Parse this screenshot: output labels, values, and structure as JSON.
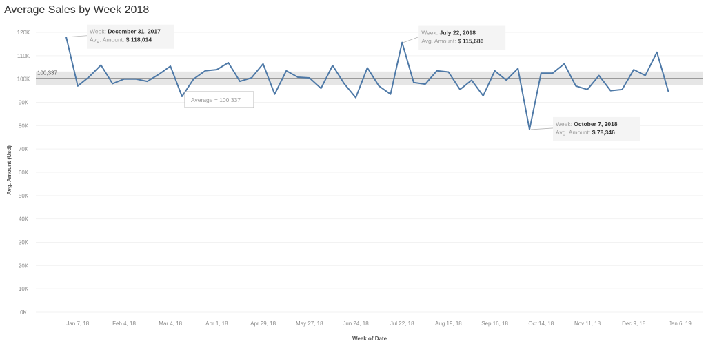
{
  "chart_data": {
    "type": "line",
    "title": "Average Sales by Week 2018",
    "xlabel": "Week of Date",
    "ylabel": "Avg. Amount (Usd)",
    "ylim": [
      0,
      120000
    ],
    "y_ticks": [
      0,
      10000,
      20000,
      30000,
      40000,
      50000,
      60000,
      70000,
      80000,
      90000,
      100000,
      110000,
      120000
    ],
    "y_tick_labels": [
      "0K",
      "10K",
      "20K",
      "30K",
      "40K",
      "50K",
      "60K",
      "70K",
      "80K",
      "90K",
      "100K",
      "110K",
      "120K"
    ],
    "x_tick_labels": [
      "Jan 7, 18",
      "Feb 4, 18",
      "Mar 4, 18",
      "Apr 1, 18",
      "Apr 29, 18",
      "May 27, 18",
      "Jun 24, 18",
      "Jul 22, 18",
      "Aug 19, 18",
      "Sep 16, 18",
      "Oct 14, 18",
      "Nov 11, 18",
      "Dec 9, 18",
      "Jan 6, 19"
    ],
    "x_tick_dates": [
      "2018-01-07",
      "2018-02-04",
      "2018-03-04",
      "2018-04-01",
      "2018-04-29",
      "2018-05-27",
      "2018-06-24",
      "2018-07-22",
      "2018-08-19",
      "2018-09-16",
      "2018-10-14",
      "2018-11-11",
      "2018-12-09",
      "2019-01-06"
    ],
    "grid": true,
    "series": [
      {
        "color": "#4e79a7",
        "x": [
          "2017-12-31",
          "2018-01-07",
          "2018-01-14",
          "2018-01-21",
          "2018-01-28",
          "2018-02-04",
          "2018-02-11",
          "2018-02-18",
          "2018-02-25",
          "2018-03-04",
          "2018-03-11",
          "2018-03-18",
          "2018-03-25",
          "2018-04-01",
          "2018-04-08",
          "2018-04-15",
          "2018-04-22",
          "2018-04-29",
          "2018-05-06",
          "2018-05-13",
          "2018-05-20",
          "2018-05-27",
          "2018-06-03",
          "2018-06-10",
          "2018-06-17",
          "2018-06-24",
          "2018-07-01",
          "2018-07-08",
          "2018-07-15",
          "2018-07-22",
          "2018-07-29",
          "2018-08-05",
          "2018-08-12",
          "2018-08-19",
          "2018-08-26",
          "2018-09-02",
          "2018-09-09",
          "2018-09-16",
          "2018-09-23",
          "2018-09-30",
          "2018-10-07",
          "2018-10-14",
          "2018-10-21",
          "2018-10-28",
          "2018-11-04",
          "2018-11-11",
          "2018-11-18",
          "2018-11-25",
          "2018-12-02",
          "2018-12-09",
          "2018-12-16",
          "2018-12-23",
          "2018-12-30"
        ],
        "values": [
          118014,
          97000,
          101000,
          106000,
          98000,
          100000,
          100000,
          99000,
          102000,
          105500,
          92500,
          100000,
          103500,
          104000,
          107000,
          99000,
          100500,
          106500,
          93500,
          103500,
          100800,
          100500,
          96000,
          105800,
          98000,
          92000,
          104800,
          97000,
          93500,
          115686,
          98500,
          97800,
          103500,
          103000,
          95500,
          99500,
          92800,
          103500,
          99500,
          104500,
          78346,
          102500,
          102500,
          106500,
          97000,
          95500,
          101500,
          95000,
          95500,
          104000,
          101500,
          111500,
          94500
        ]
      }
    ],
    "reference_line": {
      "value": 100337,
      "label": "100,337",
      "band": [
        97500,
        103200
      ],
      "tooltip": "Average = 100,337"
    },
    "annotations": [
      {
        "week_label": "Week:",
        "week_value": "December 31, 2017",
        "amount_label": "Avg. Amount:",
        "amount_value": "$ 118,014",
        "date": "2017-12-31",
        "value": 118014
      },
      {
        "week_label": "Week:",
        "week_value": "July 22, 2018",
        "amount_label": "Avg. Amount:",
        "amount_value": "$ 115,686",
        "date": "2018-07-22",
        "value": 115686
      },
      {
        "week_label": "Week:",
        "week_value": "October 7, 2018",
        "amount_label": "Avg. Amount:",
        "amount_value": "$ 78,346",
        "date": "2018-10-07",
        "value": 78346
      }
    ]
  }
}
